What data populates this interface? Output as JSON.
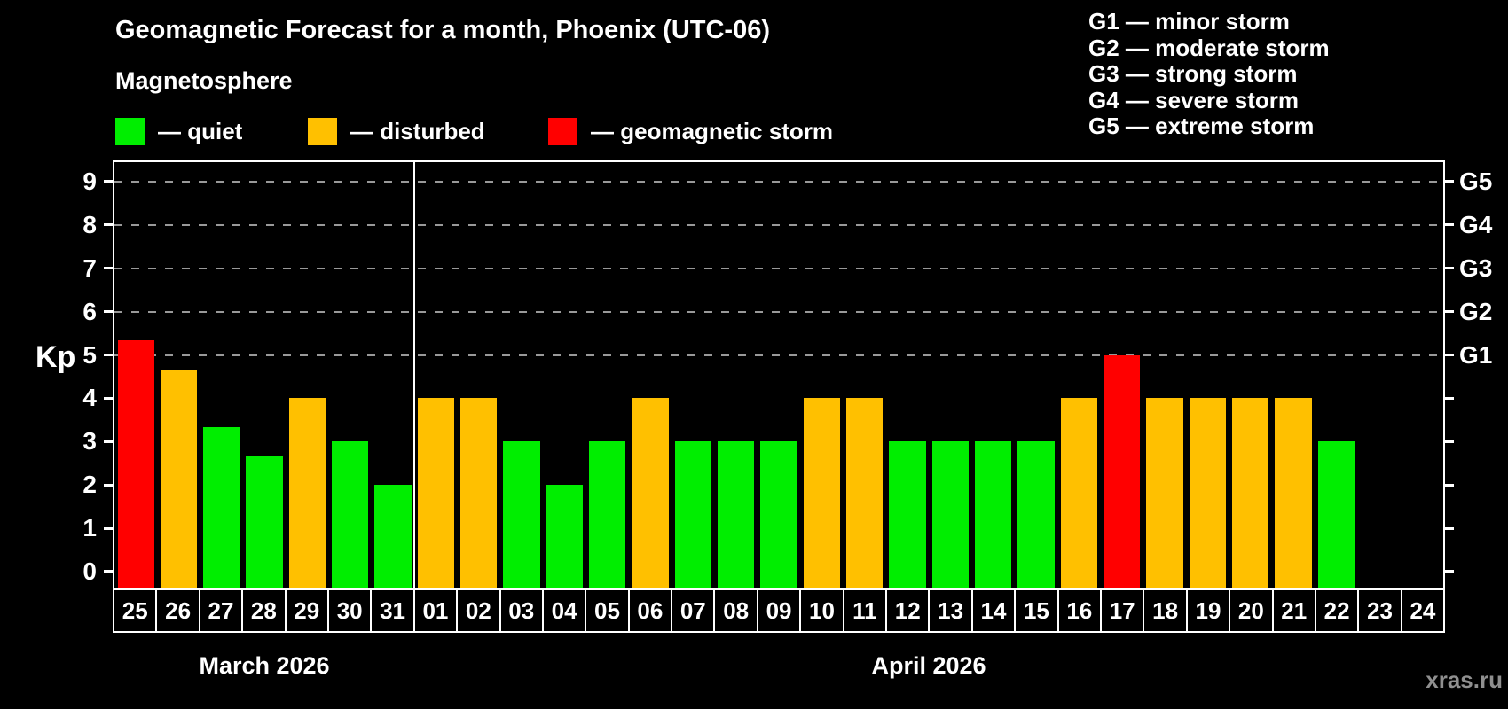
{
  "page": {
    "title": "Geomagnetic Forecast for a month, Phoenix (UTC-06)",
    "subtitle": "Magnetosphere",
    "watermark": "xras.ru"
  },
  "legend": {
    "items": [
      {
        "key": "quiet",
        "label": "— quiet",
        "color": "#00ee00"
      },
      {
        "key": "disturbed",
        "label": "— disturbed",
        "color": "#ffc000"
      },
      {
        "key": "storm",
        "label": "— geomagnetic storm",
        "color": "#ff0000"
      }
    ]
  },
  "g_legend": {
    "items": [
      "G1 — minor storm",
      "G2 — moderate storm",
      "G3 — strong storm",
      "G4 — severe storm",
      "G5 — extreme storm"
    ]
  },
  "chart_data": {
    "type": "bar",
    "title": "Geomagnetic Forecast for a month, Phoenix (UTC-06)",
    "subtitle": "Magnetosphere",
    "y_axis_left": {
      "label": "Kp",
      "ticks": [
        0,
        1,
        2,
        3,
        4,
        5,
        6,
        7,
        8,
        9
      ]
    },
    "y_axis_right": {
      "ticks": [
        0,
        1,
        2,
        3,
        4,
        5,
        6,
        7,
        8,
        9
      ],
      "labels": [
        {
          "kp": 5,
          "label": "G1"
        },
        {
          "kp": 6,
          "label": "G2"
        },
        {
          "kp": 7,
          "label": "G3"
        },
        {
          "kp": 8,
          "label": "G4"
        },
        {
          "kp": 9,
          "label": "G5"
        }
      ]
    },
    "ylim": [
      -0.43,
      9.45
    ],
    "gridlines": [
      5,
      6,
      7,
      8,
      9
    ],
    "grid_style": "dashed",
    "legend_position": "top",
    "colors": {
      "quiet": "#00ee00",
      "disturbed": "#ffc000",
      "storm": "#ff0000"
    },
    "months": [
      {
        "label": "March 2026",
        "num_days": 7
      },
      {
        "label": "April 2026",
        "num_days": 24
      }
    ],
    "bars": [
      {
        "day": "25",
        "month": "March",
        "kp": 5.33,
        "status": "storm"
      },
      {
        "day": "26",
        "month": "March",
        "kp": 4.67,
        "status": "disturbed"
      },
      {
        "day": "27",
        "month": "March",
        "kp": 3.33,
        "status": "quiet"
      },
      {
        "day": "28",
        "month": "March",
        "kp": 2.67,
        "status": "quiet"
      },
      {
        "day": "29",
        "month": "March",
        "kp": 4.0,
        "status": "disturbed"
      },
      {
        "day": "30",
        "month": "March",
        "kp": 3.0,
        "status": "quiet"
      },
      {
        "day": "31",
        "month": "March",
        "kp": 2.0,
        "status": "quiet"
      },
      {
        "day": "01",
        "month": "April",
        "kp": 4.0,
        "status": "disturbed"
      },
      {
        "day": "02",
        "month": "April",
        "kp": 4.0,
        "status": "disturbed"
      },
      {
        "day": "03",
        "month": "April",
        "kp": 3.0,
        "status": "quiet"
      },
      {
        "day": "04",
        "month": "April",
        "kp": 2.0,
        "status": "quiet"
      },
      {
        "day": "05",
        "month": "April",
        "kp": 3.0,
        "status": "quiet"
      },
      {
        "day": "06",
        "month": "April",
        "kp": 4.0,
        "status": "disturbed"
      },
      {
        "day": "07",
        "month": "April",
        "kp": 3.0,
        "status": "quiet"
      },
      {
        "day": "08",
        "month": "April",
        "kp": 3.0,
        "status": "quiet"
      },
      {
        "day": "09",
        "month": "April",
        "kp": 3.0,
        "status": "quiet"
      },
      {
        "day": "10",
        "month": "April",
        "kp": 4.0,
        "status": "disturbed"
      },
      {
        "day": "11",
        "month": "April",
        "kp": 4.0,
        "status": "disturbed"
      },
      {
        "day": "12",
        "month": "April",
        "kp": 3.0,
        "status": "quiet"
      },
      {
        "day": "13",
        "month": "April",
        "kp": 3.0,
        "status": "quiet"
      },
      {
        "day": "14",
        "month": "April",
        "kp": 3.0,
        "status": "quiet"
      },
      {
        "day": "15",
        "month": "April",
        "kp": 3.0,
        "status": "quiet"
      },
      {
        "day": "16",
        "month": "April",
        "kp": 4.0,
        "status": "disturbed"
      },
      {
        "day": "17",
        "month": "April",
        "kp": 5.0,
        "status": "storm"
      },
      {
        "day": "18",
        "month": "April",
        "kp": 4.0,
        "status": "disturbed"
      },
      {
        "day": "19",
        "month": "April",
        "kp": 4.0,
        "status": "disturbed"
      },
      {
        "day": "20",
        "month": "April",
        "kp": 4.0,
        "status": "disturbed"
      },
      {
        "day": "21",
        "month": "April",
        "kp": 4.0,
        "status": "disturbed"
      },
      {
        "day": "22",
        "month": "April",
        "kp": 3.0,
        "status": "quiet"
      },
      {
        "day": "23",
        "month": "April",
        "kp": null,
        "status": "none"
      },
      {
        "day": "24",
        "month": "April",
        "kp": null,
        "status": "none"
      }
    ]
  }
}
